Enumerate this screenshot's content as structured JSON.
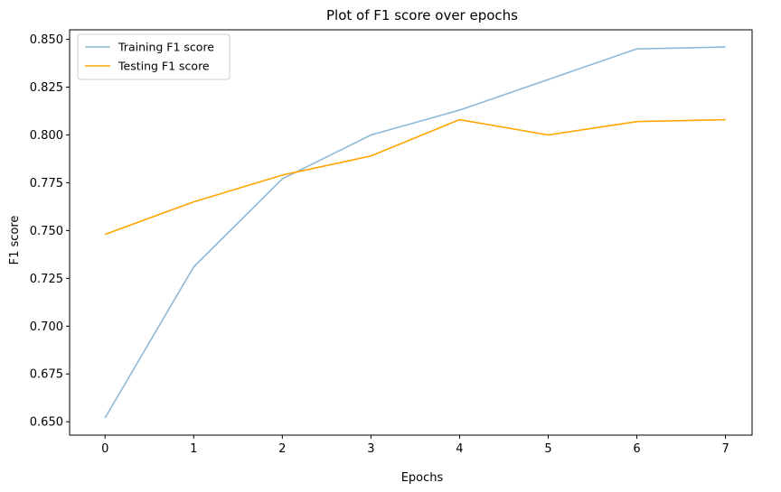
{
  "chart_data": {
    "type": "line",
    "title": "Plot of F1 score over epochs",
    "xlabel": "Epochs",
    "ylabel": "F1 score",
    "x": [
      0,
      1,
      2,
      3,
      4,
      5,
      6,
      7
    ],
    "xlim": [
      -0.4,
      7.3
    ],
    "ylim": [
      0.643,
      0.855
    ],
    "xticks": [
      0,
      1,
      2,
      3,
      4,
      5,
      6,
      7
    ],
    "xtick_labels": [
      "0",
      "1",
      "2",
      "3",
      "4",
      "5",
      "6",
      "7"
    ],
    "yticks": [
      0.65,
      0.675,
      0.7,
      0.725,
      0.75,
      0.775,
      0.8,
      0.825,
      0.85
    ],
    "ytick_labels": [
      "0.650",
      "0.675",
      "0.700",
      "0.725",
      "0.750",
      "0.775",
      "0.800",
      "0.825",
      "0.850"
    ],
    "grid": false,
    "legend_position": "top-left",
    "series": [
      {
        "name": "Training F1 score",
        "color": "#8fb8d6",
        "values": [
          0.652,
          0.731,
          0.777,
          0.8,
          0.813,
          0.829,
          0.845,
          0.846
        ]
      },
      {
        "name": "Testing F1 score",
        "color": "#ffa500",
        "values": [
          0.748,
          0.765,
          0.779,
          0.789,
          0.808,
          0.8,
          0.807,
          0.808
        ]
      }
    ]
  }
}
